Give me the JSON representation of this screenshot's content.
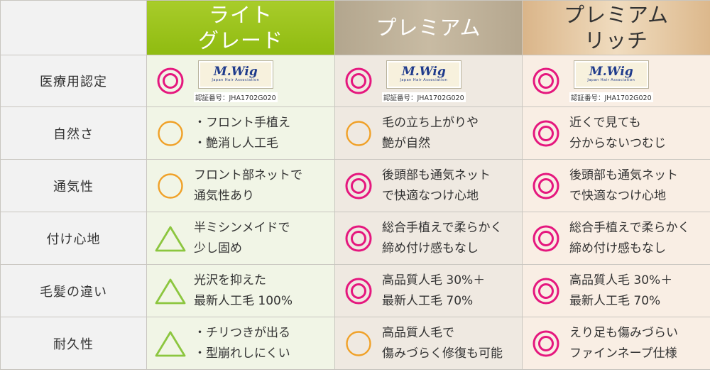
{
  "header": {
    "corner": "",
    "plans": [
      {
        "line1": "ライト",
        "line2": "グレード"
      },
      {
        "line1": "プレミアム",
        "line2": ""
      },
      {
        "line1": "プレミアム",
        "line2": "リッチ"
      }
    ]
  },
  "colors": {
    "double_circle": "#e5177e",
    "circle": "#f0a128",
    "triangle": "#8cc63f"
  },
  "cert": {
    "logo_text": "M.Wig",
    "logo_sub": "Japan Hair Association",
    "number": "認証番号：JHA1702G020"
  },
  "rows": [
    {
      "label": "医療用認定",
      "cells": [
        {
          "mark": "double-circle",
          "cert": true
        },
        {
          "mark": "double-circle",
          "cert": true
        },
        {
          "mark": "double-circle",
          "cert": true
        }
      ]
    },
    {
      "label": "自然さ",
      "cells": [
        {
          "mark": "circle",
          "lines": [
            "・フロント手植え",
            "・艶消し人工毛"
          ]
        },
        {
          "mark": "circle",
          "lines": [
            "毛の立ち上がりや",
            "艶が自然"
          ]
        },
        {
          "mark": "double-circle",
          "lines": [
            "近くで見ても",
            "分からないつむじ"
          ]
        }
      ]
    },
    {
      "label": "通気性",
      "cells": [
        {
          "mark": "circle",
          "lines": [
            "フロント部ネットで",
            "通気性あり"
          ]
        },
        {
          "mark": "double-circle",
          "lines": [
            "後頭部も通気ネット",
            "で快適なつけ心地"
          ]
        },
        {
          "mark": "double-circle",
          "lines": [
            "後頭部も通気ネット",
            "で快適なつけ心地"
          ]
        }
      ]
    },
    {
      "label": "付け心地",
      "cells": [
        {
          "mark": "triangle",
          "lines": [
            "半ミシンメイドで",
            "少し固め"
          ]
        },
        {
          "mark": "double-circle",
          "lines": [
            "総合手植えで柔らかく",
            "締め付け感もなし"
          ]
        },
        {
          "mark": "double-circle",
          "lines": [
            "総合手植えで柔らかく",
            "締め付け感もなし"
          ]
        }
      ]
    },
    {
      "label": "毛髪の違い",
      "cells": [
        {
          "mark": "triangle",
          "lines": [
            "光沢を抑えた",
            "最新人工毛 100%"
          ]
        },
        {
          "mark": "double-circle",
          "lines": [
            "高品質人毛 30%＋",
            "最新人工毛 70%"
          ]
        },
        {
          "mark": "double-circle",
          "lines": [
            "高品質人毛 30%＋",
            "最新人工毛 70%"
          ]
        }
      ]
    },
    {
      "label": "耐久性",
      "cells": [
        {
          "mark": "triangle",
          "lines": [
            "・チリつきが出る",
            "・型崩れしにくい"
          ]
        },
        {
          "mark": "circle",
          "lines": [
            "高品質人毛で",
            "傷みづらく修復も可能"
          ]
        },
        {
          "mark": "double-circle",
          "lines": [
            "えり足も傷みづらい",
            "ファインネープ仕様"
          ]
        }
      ]
    }
  ]
}
